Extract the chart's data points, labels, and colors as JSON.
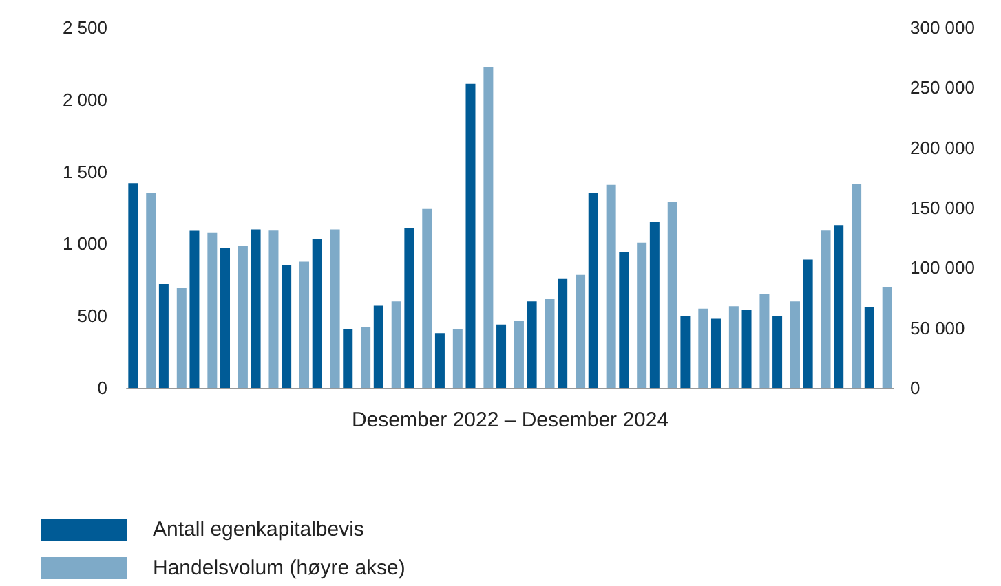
{
  "chart_data": {
    "type": "bar",
    "xlabel": "Desember 2022 – Desember 2024",
    "categories": [
      null,
      null,
      null,
      null,
      null,
      null,
      null,
      null,
      null,
      null,
      null,
      null,
      null,
      null,
      null,
      null,
      null,
      null,
      null,
      null,
      null,
      null,
      null,
      null,
      null
    ],
    "series": [
      {
        "name": "Antall egenkapitalbevis",
        "color": "#005b96",
        "values": [
          1420,
          720,
          1090,
          970,
          1100,
          850,
          1030,
          410,
          570,
          1110,
          380,
          2110,
          440,
          600,
          760,
          1350,
          940,
          1150,
          500,
          480,
          540,
          500,
          890,
          1130,
          560
        ]
      },
      {
        "name": "Handelsvolum (høyre akse)",
        "color": "#7eaac8",
        "axis": "y2",
        "values": [
          162000,
          83000,
          129000,
          118000,
          131000,
          105000,
          132000,
          51000,
          72000,
          149000,
          49000,
          267000,
          56000,
          74000,
          94000,
          169000,
          121000,
          155000,
          66000,
          68000,
          78000,
          72000,
          131000,
          170000,
          84000
        ]
      }
    ],
    "ylim": [
      0,
      2500
    ],
    "yticks": [
      0,
      500,
      {
        "value": 1000,
        "label": "1 000"
      },
      {
        "value": 1500,
        "label": "1 500"
      },
      {
        "value": 2000,
        "label": "2 000"
      },
      {
        "value": 2500,
        "label": "2 500"
      }
    ],
    "y2lim": [
      0,
      300000
    ],
    "y2ticks": [
      0,
      {
        "value": 50000,
        "label": "50 000"
      },
      {
        "value": 100000,
        "label": "100 000"
      },
      {
        "value": 150000,
        "label": "150 000"
      },
      {
        "value": 200000,
        "label": "200 000"
      },
      {
        "value": 250000,
        "label": "250 000"
      },
      {
        "value": 300000,
        "label": "300 000"
      }
    ],
    "grid": false,
    "legend": "bottom left"
  }
}
